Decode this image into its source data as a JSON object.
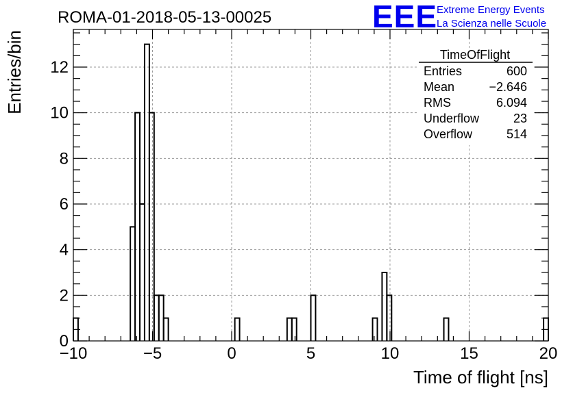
{
  "chart_data": {
    "type": "bar",
    "title": "ROMA-01-2018-05-13-00025",
    "xlabel": "Time of flight [ns]",
    "ylabel": "Entries/bin",
    "xlim": [
      -10,
      20
    ],
    "ylim": [
      0,
      13.65
    ],
    "bin_width": 0.3,
    "x_ticks": [
      -10,
      -5,
      0,
      5,
      10,
      15,
      20
    ],
    "x_tick_labels": [
      "−10",
      "−5",
      "0",
      "5",
      "10",
      "15",
      "20"
    ],
    "y_ticks": [
      0,
      2,
      4,
      6,
      8,
      10,
      12
    ],
    "y_tick_labels": [
      "0",
      "2",
      "4",
      "6",
      "8",
      "10",
      "12"
    ],
    "grid": true,
    "histogram": "step",
    "bins": [
      {
        "x": -10.0,
        "count": 1
      },
      {
        "x": -6.4,
        "count": 5
      },
      {
        "x": -6.1,
        "count": 10
      },
      {
        "x": -5.8,
        "count": 6
      },
      {
        "x": -5.5,
        "count": 13
      },
      {
        "x": -5.2,
        "count": 10
      },
      {
        "x": -4.9,
        "count": 2
      },
      {
        "x": -4.6,
        "count": 2
      },
      {
        "x": -4.3,
        "count": 1
      },
      {
        "x": 0.2,
        "count": 1
      },
      {
        "x": 3.5,
        "count": 1
      },
      {
        "x": 3.8,
        "count": 1
      },
      {
        "x": 5.0,
        "count": 2
      },
      {
        "x": 8.9,
        "count": 1
      },
      {
        "x": 9.5,
        "count": 3
      },
      {
        "x": 9.8,
        "count": 2
      },
      {
        "x": 13.4,
        "count": 1
      },
      {
        "x": 19.7,
        "count": 1
      }
    ],
    "stats_box": {
      "title": "TimeOfFlight",
      "placement": "top-right",
      "rows": [
        {
          "label": "Entries",
          "value": "600"
        },
        {
          "label": "Mean",
          "value": "−2.646"
        },
        {
          "label": "RMS",
          "value": "6.094"
        },
        {
          "label": "Underflow",
          "value": "23"
        },
        {
          "label": "Overflow",
          "value": "514"
        }
      ]
    }
  },
  "logo": {
    "text": "EEE",
    "line1": "Extreme Energy Events",
    "line2": "La Scienza nelle Scuole",
    "color": "#0000ee"
  },
  "colors": {
    "histogram_line": "#000000",
    "grid": "#9a9a9a"
  }
}
